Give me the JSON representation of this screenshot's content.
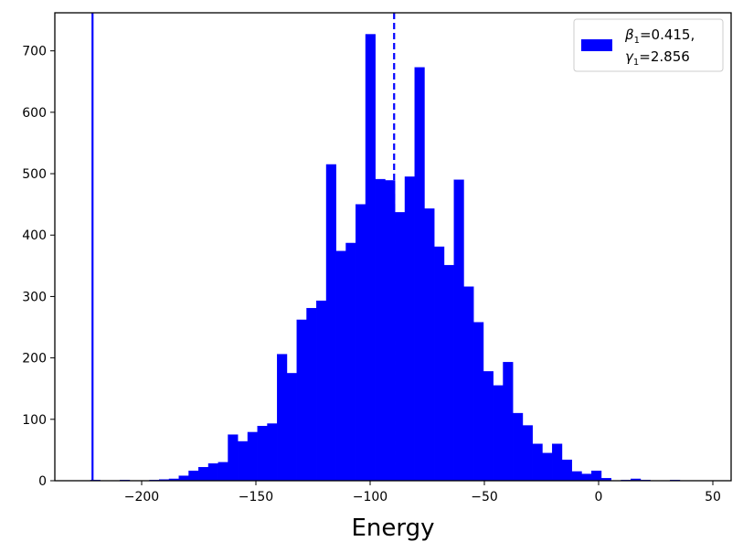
{
  "chart_data": {
    "type": "bar",
    "title": "",
    "xlabel": "Energy",
    "ylabel": "",
    "xlim": [
      -238,
      58
    ],
    "ylim": [
      0,
      762
    ],
    "x_ticks": [
      -200,
      -150,
      -100,
      -50,
      0,
      50
    ],
    "x_tick_labels": [
      "−200",
      "−150",
      "−100",
      "−50",
      "0",
      "50"
    ],
    "y_ticks": [
      0,
      100,
      200,
      300,
      400,
      500,
      600,
      700
    ],
    "y_tick_labels": [
      "0",
      "100",
      "200",
      "300",
      "400",
      "500",
      "600",
      "700"
    ],
    "grid": false,
    "bar_color": "#0000ff",
    "bin_width": 4.3,
    "series": [
      {
        "name": "β1=0.415, γ1=2.856",
        "bin_starts": [
          -222.4,
          -218.1,
          -213.8,
          -209.5,
          -205.2,
          -200.9,
          -196.6,
          -192.3,
          -188.0,
          -183.7,
          -179.4,
          -175.1,
          -170.8,
          -166.5,
          -162.2,
          -157.9,
          -153.6,
          -149.3,
          -145.0,
          -140.7,
          -136.4,
          -132.1,
          -127.8,
          -123.5,
          -119.2,
          -114.9,
          -110.6,
          -106.3,
          -102.0,
          -97.7,
          -93.4,
          -89.1,
          -84.8,
          -80.5,
          -76.2,
          -71.9,
          -67.6,
          -63.3,
          -59.0,
          -54.7,
          -50.4,
          -46.1,
          -41.8,
          -37.5,
          -33.2,
          -28.9,
          -24.6,
          -20.3,
          -16.0,
          -11.7,
          -7.4,
          -3.1,
          1.2,
          5.5,
          9.8,
          14.1,
          18.4,
          22.7,
          27.0,
          31.3,
          35.6,
          39.9,
          44.2
        ],
        "values": [
          1,
          0,
          0,
          1,
          0,
          0,
          1,
          2,
          3,
          8,
          16,
          22,
          28,
          30,
          75,
          64,
          79,
          89,
          93,
          206,
          175,
          262,
          281,
          293,
          515,
          374,
          387,
          450,
          727,
          491,
          489,
          437,
          495,
          673,
          443,
          381,
          351,
          490,
          316,
          258,
          178,
          155,
          193,
          110,
          90,
          60,
          45,
          60,
          34,
          15,
          11,
          16,
          4,
          0,
          1,
          3,
          1,
          0,
          0,
          1,
          0,
          0,
          0
        ]
      }
    ],
    "vlines": [
      {
        "x": -221.5,
        "style": "solid",
        "color": "#0000ff"
      },
      {
        "x": -89.5,
        "style": "dashed",
        "color": "#0000ff"
      }
    ],
    "legend": {
      "placement": "top-right",
      "line1": "=0.415,",
      "line2": "=2.856",
      "symbol1": "β",
      "symbol2": "γ",
      "subscript": "1"
    }
  }
}
